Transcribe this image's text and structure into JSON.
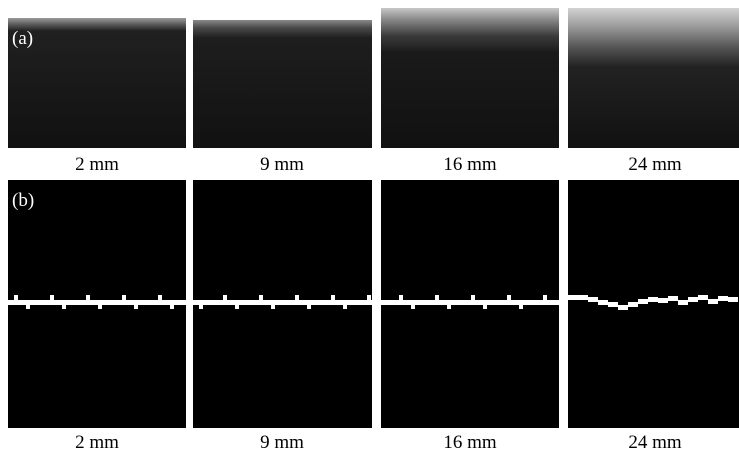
{
  "panels": [
    {
      "label": "(a)",
      "captions": [
        "2 mm",
        "9 mm",
        "16 mm",
        "24 mm"
      ]
    },
    {
      "label": "(b)",
      "captions": [
        "2 mm",
        "9 mm",
        "16 mm",
        "24 mm"
      ]
    }
  ]
}
